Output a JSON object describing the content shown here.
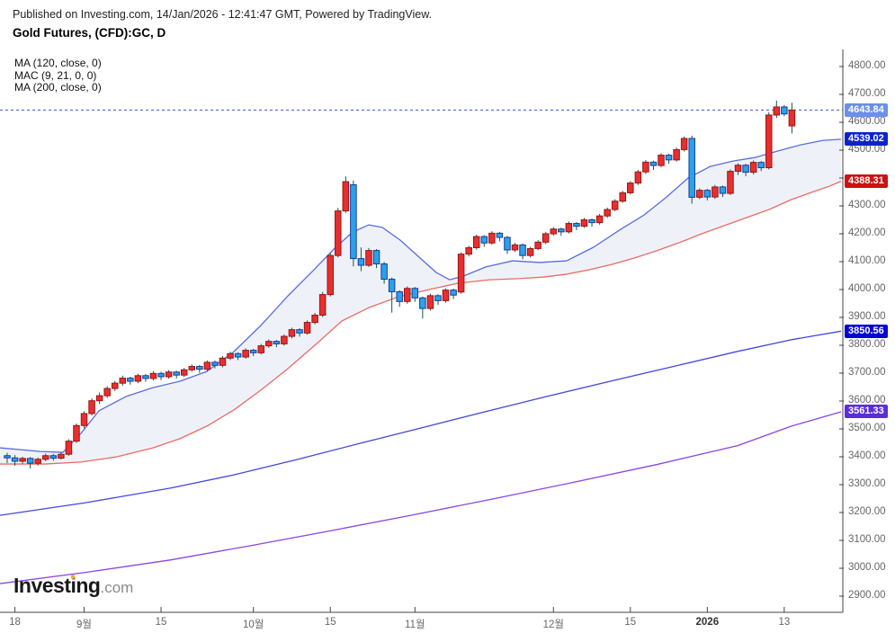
{
  "header": {
    "published_line": "Published on Investing.com, 14/Jan/2026 - 12:41:47 GMT, Powered by TradingView.",
    "symbol_title": "Gold Futures, (CFD):GC, D"
  },
  "legend": {
    "items": [
      "MA (120, close, 0)",
      "MAC (9, 21, 0, 0)",
      "MA (200, close, 0)"
    ]
  },
  "logo": {
    "part1": "Invest",
    "part2": "i",
    "part3": "ng",
    "suffix": ".com"
  },
  "price_axis": {
    "tick_labels": [
      "4800.00",
      "4700.00",
      "4600.00",
      "4500.00",
      "4300.00",
      "4200.00",
      "4100.00",
      "4000.00",
      "3900.00",
      "3800.00",
      "3700.00",
      "3600.00",
      "3500.00",
      "3400.00",
      "3300.00",
      "3200.00",
      "3100.00",
      "3000.00",
      "2900.00"
    ],
    "tick_marks": [
      4800,
      4700,
      4600,
      4500,
      4400,
      4300,
      4200,
      4100,
      4000,
      3900,
      3800,
      3700,
      3600,
      3500,
      3400,
      3300,
      3200,
      3100,
      3000,
      2900
    ]
  },
  "price_labels": [
    {
      "text": "4643.84",
      "price": 4643.84,
      "bg": "#6b90e8",
      "kind": "last-price"
    },
    {
      "text": "4539.02",
      "price": 4539.02,
      "bg": "#0c23cc",
      "kind": "mac-upper"
    },
    {
      "text": "4388.31",
      "price": 4388.31,
      "bg": "#cc1212",
      "kind": "mac-lower"
    },
    {
      "text": "3850.56",
      "price": 3850.56,
      "bg": "#0505d2",
      "kind": "ma-120"
    },
    {
      "text": "3561.33",
      "price": 3561.33,
      "bg": "#5a2ed8",
      "kind": "ma-200"
    }
  ],
  "time_axis": {
    "ticks": [
      {
        "i": 1,
        "label": "18"
      },
      {
        "i": 10,
        "label": "9월"
      },
      {
        "i": 20,
        "label": "15"
      },
      {
        "i": 32,
        "label": "10월"
      },
      {
        "i": 42,
        "label": "15"
      },
      {
        "i": 53,
        "label": "11월"
      },
      {
        "i": 71,
        "label": "12월"
      },
      {
        "i": 81,
        "label": "15"
      },
      {
        "i": 91,
        "label": "2026",
        "bold": true
      },
      {
        "i": 101,
        "label": "13"
      }
    ]
  },
  "chart_data": {
    "type": "candlestick",
    "title": "Gold Futures, (CFD):GC, D",
    "timeframe": "D",
    "last_price": 4643.84,
    "ylim": [
      2845,
      4860
    ],
    "grid": false,
    "colors": {
      "up_fill": "#e82f2f",
      "up_border": "#991414",
      "down_fill": "#2aa2e8",
      "down_border": "#1a3a9c",
      "wick": "#0e5a4a",
      "band_fill": "rgba(160,185,215,0.18)",
      "axis": "#444444",
      "last_price_line": "#3a57cc"
    },
    "candles": [
      [
        3404,
        3414,
        3378,
        3396
      ],
      [
        3396,
        3406,
        3368,
        3384
      ],
      [
        3384,
        3400,
        3376,
        3394
      ],
      [
        3394,
        3399,
        3358,
        3377
      ],
      [
        3377,
        3397,
        3369,
        3391
      ],
      [
        3391,
        3411,
        3384,
        3404
      ],
      [
        3404,
        3410,
        3386,
        3395
      ],
      [
        3395,
        3416,
        3390,
        3409
      ],
      [
        3409,
        3463,
        3404,
        3456
      ],
      [
        3456,
        3519,
        3450,
        3512
      ],
      [
        3512,
        3563,
        3502,
        3555
      ],
      [
        3555,
        3609,
        3548,
        3601
      ],
      [
        3601,
        3631,
        3589,
        3619
      ],
      [
        3619,
        3653,
        3611,
        3645
      ],
      [
        3645,
        3672,
        3636,
        3664
      ],
      [
        3664,
        3691,
        3655,
        3682
      ],
      [
        3682,
        3687,
        3659,
        3671
      ],
      [
        3671,
        3698,
        3664,
        3691
      ],
      [
        3691,
        3697,
        3669,
        3681
      ],
      [
        3681,
        3707,
        3674,
        3699
      ],
      [
        3699,
        3705,
        3675,
        3687
      ],
      [
        3687,
        3711,
        3680,
        3704
      ],
      [
        3704,
        3709,
        3681,
        3693
      ],
      [
        3693,
        3719,
        3686,
        3712
      ],
      [
        3712,
        3731,
        3705,
        3724
      ],
      [
        3724,
        3729,
        3701,
        3714
      ],
      [
        3714,
        3746,
        3708,
        3739
      ],
      [
        3739,
        3745,
        3717,
        3728
      ],
      [
        3728,
        3761,
        3721,
        3754
      ],
      [
        3754,
        3777,
        3747,
        3770
      ],
      [
        3770,
        3775,
        3747,
        3758
      ],
      [
        3758,
        3789,
        3752,
        3782
      ],
      [
        3782,
        3787,
        3761,
        3773
      ],
      [
        3773,
        3805,
        3767,
        3798
      ],
      [
        3798,
        3821,
        3791,
        3814
      ],
      [
        3814,
        3819,
        3793,
        3805
      ],
      [
        3805,
        3839,
        3799,
        3832
      ],
      [
        3832,
        3863,
        3825,
        3856
      ],
      [
        3856,
        3861,
        3831,
        3844
      ],
      [
        3844,
        3889,
        3838,
        3882
      ],
      [
        3882,
        3916,
        3875,
        3908
      ],
      [
        3908,
        3991,
        3901,
        3982
      ],
      [
        3982,
        4131,
        3975,
        4122
      ],
      [
        4122,
        4293,
        4115,
        4282
      ],
      [
        4282,
        4406,
        4275,
        4387
      ],
      [
        4376,
        4391,
        4083,
        4111
      ],
      [
        4111,
        4151,
        4066,
        4087
      ],
      [
        4087,
        4149,
        4081,
        4140
      ],
      [
        4140,
        4145,
        4077,
        4092
      ],
      [
        4092,
        4099,
        4021,
        4037
      ],
      [
        4037,
        4043,
        3917,
        3992
      ],
      [
        3992,
        3997,
        3938,
        3957
      ],
      [
        3957,
        4011,
        3949,
        4004
      ],
      [
        4004,
        4009,
        3956,
        3970
      ],
      [
        3970,
        3975,
        3896,
        3932
      ],
      [
        3932,
        3985,
        3925,
        3978
      ],
      [
        3978,
        3983,
        3945,
        3960
      ],
      [
        3960,
        4004,
        3953,
        3998
      ],
      [
        3998,
        4003,
        3966,
        3980
      ],
      [
        3991,
        4133,
        3985,
        4127
      ],
      [
        4127,
        4157,
        4119,
        4150
      ],
      [
        4150,
        4197,
        4143,
        4190
      ],
      [
        4190,
        4195,
        4153,
        4167
      ],
      [
        4167,
        4209,
        4161,
        4202
      ],
      [
        4202,
        4207,
        4173,
        4187
      ],
      [
        4187,
        4192,
        4128,
        4142
      ],
      [
        4142,
        4167,
        4135,
        4160
      ],
      [
        4160,
        4165,
        4108,
        4122
      ],
      [
        4122,
        4153,
        4115,
        4147
      ],
      [
        4147,
        4177,
        4141,
        4170
      ],
      [
        4170,
        4207,
        4163,
        4200
      ],
      [
        4200,
        4224,
        4193,
        4217
      ],
      [
        4217,
        4222,
        4193,
        4207
      ],
      [
        4207,
        4244,
        4201,
        4237
      ],
      [
        4237,
        4242,
        4213,
        4227
      ],
      [
        4227,
        4257,
        4221,
        4250
      ],
      [
        4250,
        4255,
        4225,
        4240
      ],
      [
        4240,
        4271,
        4233,
        4264
      ],
      [
        4264,
        4294,
        4257,
        4287
      ],
      [
        4287,
        4324,
        4281,
        4317
      ],
      [
        4317,
        4354,
        4311,
        4347
      ],
      [
        4347,
        4389,
        4341,
        4382
      ],
      [
        4382,
        4429,
        4375,
        4422
      ],
      [
        4422,
        4464,
        4415,
        4457
      ],
      [
        4457,
        4462,
        4429,
        4445
      ],
      [
        4445,
        4489,
        4439,
        4482
      ],
      [
        4482,
        4487,
        4451,
        4465
      ],
      [
        4465,
        4509,
        4459,
        4502
      ],
      [
        4502,
        4549,
        4495,
        4542
      ],
      [
        4542,
        4552,
        4308,
        4331
      ],
      [
        4331,
        4363,
        4324,
        4356
      ],
      [
        4356,
        4361,
        4320,
        4332
      ],
      [
        4332,
        4375,
        4325,
        4368
      ],
      [
        4368,
        4373,
        4332,
        4345
      ],
      [
        4345,
        4431,
        4339,
        4424
      ],
      [
        4424,
        4453,
        4411,
        4446
      ],
      [
        4446,
        4451,
        4407,
        4421
      ],
      [
        4421,
        4463,
        4413,
        4456
      ],
      [
        4456,
        4461,
        4425,
        4437
      ],
      [
        4437,
        4636,
        4431,
        4626
      ],
      [
        4626,
        4678,
        4615,
        4655
      ],
      [
        4655,
        4662,
        4622,
        4630
      ],
      [
        4587,
        4670,
        4560,
        4643.84
      ]
    ],
    "overlays": [
      {
        "id": "mac-upper",
        "label": "MAC upper (9)",
        "color": "#5b6be0",
        "last_value": 4539.02,
        "points": [
          [
            0,
            3432
          ],
          [
            45,
            3419
          ],
          [
            70,
            3416
          ],
          [
            90,
            3484
          ],
          [
            110,
            3565
          ],
          [
            140,
            3616
          ],
          [
            170,
            3648
          ],
          [
            200,
            3671
          ],
          [
            230,
            3706
          ],
          [
            260,
            3777
          ],
          [
            290,
            3871
          ],
          [
            320,
            3977
          ],
          [
            350,
            4074
          ],
          [
            372,
            4148
          ],
          [
            392,
            4206
          ],
          [
            410,
            4232
          ],
          [
            425,
            4223
          ],
          [
            445,
            4177
          ],
          [
            465,
            4119
          ],
          [
            485,
            4061
          ],
          [
            500,
            4035
          ],
          [
            515,
            4048
          ],
          [
            540,
            4081
          ],
          [
            570,
            4103
          ],
          [
            600,
            4097
          ],
          [
            630,
            4103
          ],
          [
            660,
            4152
          ],
          [
            690,
            4216
          ],
          [
            715,
            4265
          ],
          [
            740,
            4329
          ],
          [
            765,
            4400
          ],
          [
            790,
            4442
          ],
          [
            815,
            4461
          ],
          [
            840,
            4474
          ],
          [
            865,
            4497
          ],
          [
            890,
            4519
          ],
          [
            915,
            4535
          ],
          [
            935,
            4539.02
          ]
        ]
      },
      {
        "id": "mac-lower",
        "label": "MAC lower (21)",
        "color": "#ee6a64",
        "last_value": 4388.31,
        "points": [
          [
            0,
            3374
          ],
          [
            50,
            3374
          ],
          [
            90,
            3381
          ],
          [
            130,
            3400
          ],
          [
            170,
            3432
          ],
          [
            200,
            3465
          ],
          [
            230,
            3510
          ],
          [
            260,
            3568
          ],
          [
            290,
            3639
          ],
          [
            320,
            3716
          ],
          [
            350,
            3800
          ],
          [
            380,
            3887
          ],
          [
            410,
            3935
          ],
          [
            443,
            3974
          ],
          [
            477,
            4000
          ],
          [
            510,
            4023
          ],
          [
            545,
            4035
          ],
          [
            577,
            4039
          ],
          [
            605,
            4045
          ],
          [
            630,
            4055
          ],
          [
            655,
            4071
          ],
          [
            680,
            4090
          ],
          [
            705,
            4113
          ],
          [
            730,
            4139
          ],
          [
            755,
            4168
          ],
          [
            780,
            4200
          ],
          [
            805,
            4229
          ],
          [
            830,
            4258
          ],
          [
            855,
            4287
          ],
          [
            880,
            4323
          ],
          [
            905,
            4352
          ],
          [
            920,
            4368
          ],
          [
            935,
            4388.31
          ]
        ]
      },
      {
        "id": "ma-120",
        "label": "MA (120, close, 0)",
        "color": "#4646dd",
        "last_value": 3850.56,
        "points": [
          [
            0,
            3190
          ],
          [
            95,
            3235
          ],
          [
            190,
            3288
          ],
          [
            260,
            3335
          ],
          [
            330,
            3390
          ],
          [
            400,
            3448
          ],
          [
            470,
            3505
          ],
          [
            540,
            3562
          ],
          [
            610,
            3618
          ],
          [
            680,
            3672
          ],
          [
            750,
            3725
          ],
          [
            820,
            3778
          ],
          [
            880,
            3820
          ],
          [
            935,
            3850.56
          ]
        ]
      },
      {
        "id": "ma-200",
        "label": "MA (200, close, 0)",
        "color": "#8a46e2",
        "last_value": 3561.33,
        "points": [
          [
            0,
            2945
          ],
          [
            95,
            2985
          ],
          [
            190,
            3030
          ],
          [
            280,
            3082
          ],
          [
            370,
            3136
          ],
          [
            460,
            3192
          ],
          [
            550,
            3250
          ],
          [
            640,
            3310
          ],
          [
            730,
            3372
          ],
          [
            820,
            3440
          ],
          [
            880,
            3510
          ],
          [
            935,
            3561.33
          ]
        ]
      }
    ],
    "band": {
      "between": [
        "mac-upper",
        "mac-lower"
      ]
    }
  }
}
